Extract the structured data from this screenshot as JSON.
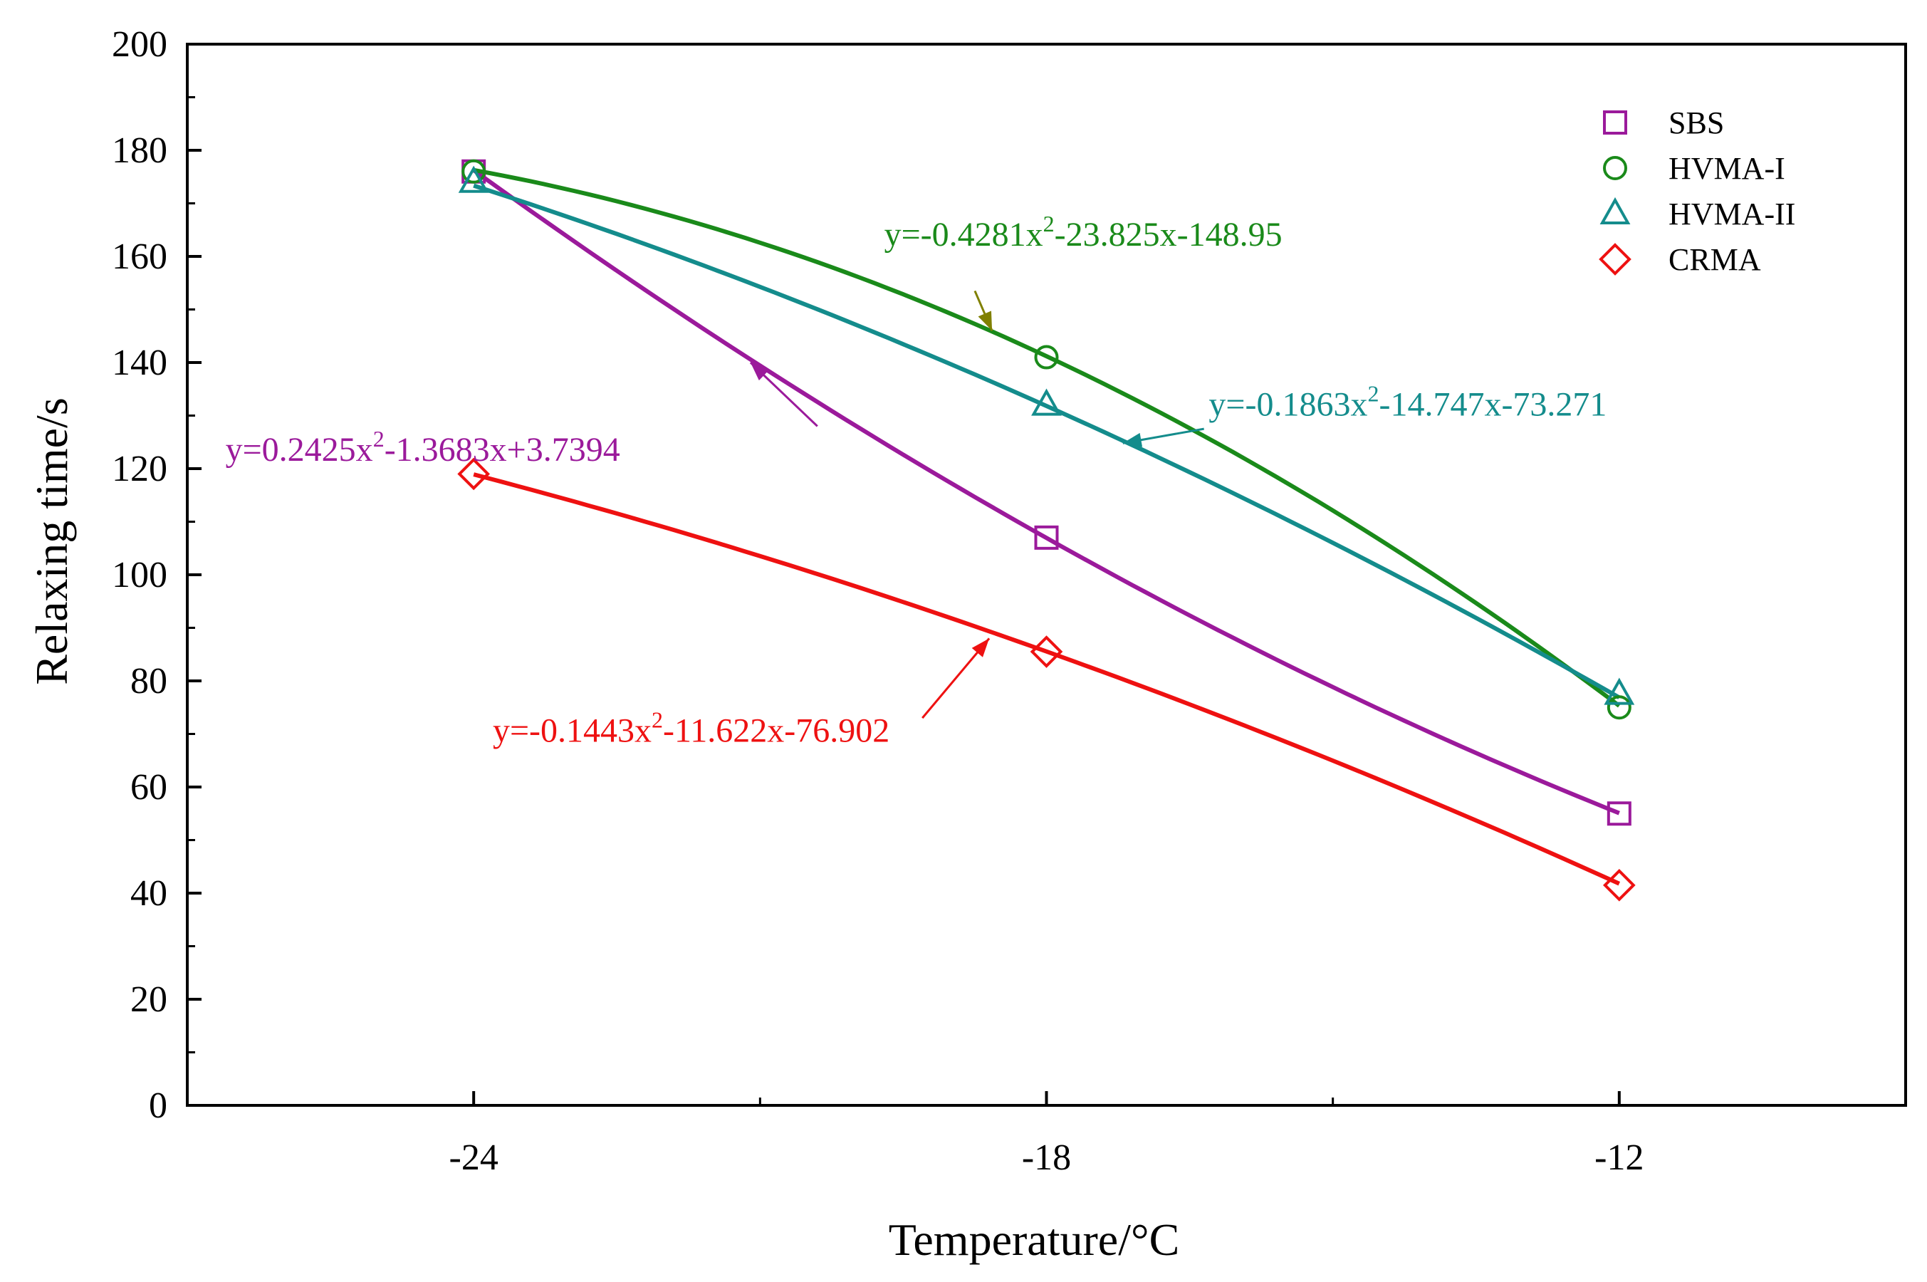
{
  "chart_data": {
    "type": "line",
    "title": "",
    "xlabel": "Temperature/°C",
    "ylabel": "Relaxing time/s",
    "x": [
      -24,
      -18,
      -12
    ],
    "xlim": [
      -27,
      -9
    ],
    "ylim": [
      0,
      200
    ],
    "xticks": [
      "-24",
      "-18",
      "-12"
    ],
    "yticks": [
      "0",
      "20",
      "40",
      "60",
      "80",
      "100",
      "120",
      "140",
      "160",
      "180",
      "200"
    ],
    "grid": false,
    "legend_position": "top-right",
    "series": [
      {
        "name": "SBS",
        "marker": "square",
        "color": "#9b1a9b",
        "values": [
          176,
          107,
          55
        ],
        "fit": {
          "a": 0.2425,
          "b": -1.3683,
          "c": 3.7394
        },
        "equation": "y=0.2425x2-1.3683x+3.7394",
        "eq_parts": [
          "y=0.2425x",
          "2",
          "-1.3683x+3.7394"
        ]
      },
      {
        "name": "HVMA-I",
        "marker": "circle",
        "color": "#1a8a1a",
        "values": [
          176,
          141,
          75
        ],
        "fit": {
          "a": -0.4281,
          "b": -23.825,
          "c": -148.95
        },
        "equation": "y=-0.4281x2-23.825x-148.95",
        "eq_parts": [
          "y=-0.4281x",
          "2",
          "-23.825x-148.95"
        ]
      },
      {
        "name": "HVMA-II",
        "marker": "triangle",
        "color": "#148c8c",
        "values": [
          174,
          132,
          77.5
        ],
        "fit": {
          "a": -0.1863,
          "b": -14.747,
          "c": -73.271
        },
        "equation": "y=-0.1863x2-14.747x-73.271",
        "eq_parts": [
          "y=-0.1863x",
          "2",
          "-14.747x-73.271"
        ]
      },
      {
        "name": "CRMA",
        "marker": "diamond",
        "color": "#ee1111",
        "values": [
          119,
          85.5,
          41.5
        ],
        "fit": {
          "a": -0.1443,
          "b": -11.622,
          "c": -76.902
        },
        "equation": "y=-0.1443x2-11.622x-76.902",
        "eq_parts": [
          "y=-0.1443x",
          "2",
          "-11.622x-76.902"
        ]
      }
    ],
    "annotations": [
      {
        "series": "HVMA-I",
        "arrow_color": "#808000",
        "text_at": [
          -19.7,
          162
        ],
        "arrow_from": [
          -18.75,
          153.5
        ],
        "arrow_to": [
          -18.57,
          146
        ]
      },
      {
        "series": "HVMA-II",
        "arrow_color": "#148c8c",
        "text_at": [
          -16.3,
          130
        ],
        "arrow_from": [
          -16.35,
          127.5
        ],
        "arrow_to": [
          -17.2,
          124.8
        ]
      },
      {
        "series": "SBS",
        "arrow_color": "#9b1a9b",
        "text_at": [
          -26.6,
          121.5
        ],
        "arrow_from": [
          -20.4,
          128
        ],
        "arrow_to": [
          -21.1,
          140
        ]
      },
      {
        "series": "CRMA",
        "arrow_color": "#ee1111",
        "text_at": [
          -23.8,
          68.5
        ],
        "arrow_from": [
          -19.3,
          73
        ],
        "arrow_to": [
          -18.6,
          88
        ]
      }
    ]
  }
}
